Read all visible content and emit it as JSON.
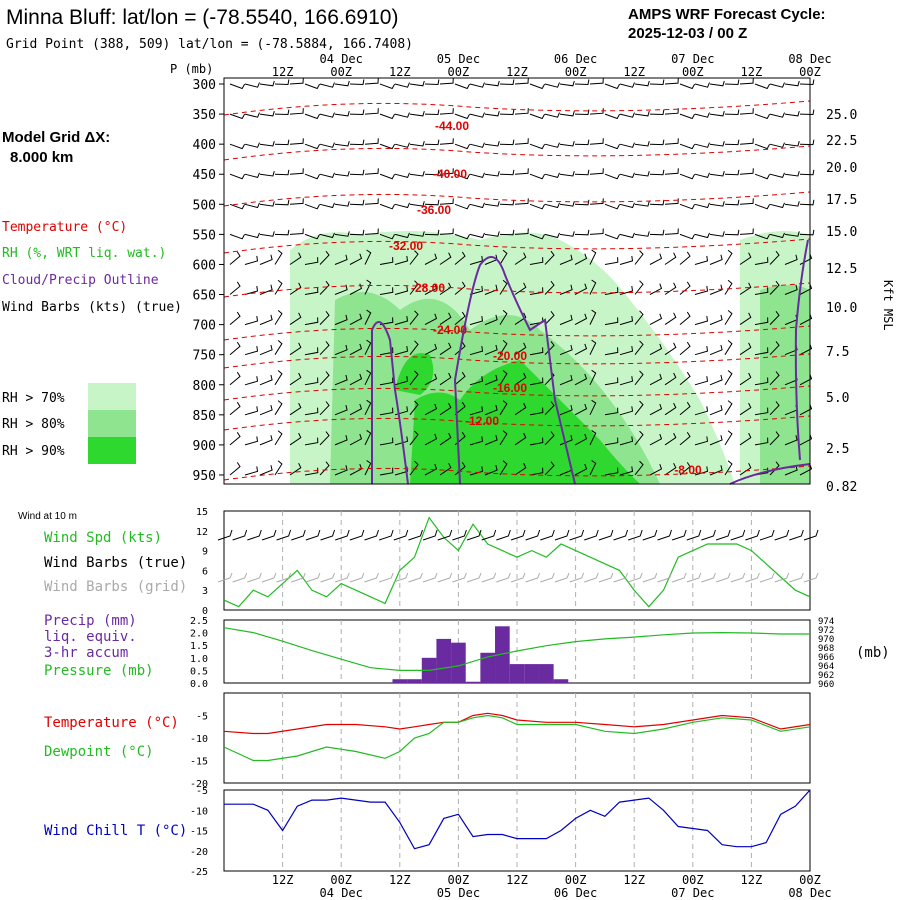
{
  "header": {
    "station_title": "Minna Bluff:  lat/lon = (-78.5540, 166.6910)",
    "grid_point": "Grid Point (388, 509) lat/lon = (-78.5884, 166.7408)",
    "cycle_title": "AMPS WRF Forecast Cycle:",
    "cycle_time": "2025-12-03 / 00  Z"
  },
  "model_grid": {
    "label": "Model Grid ΔX:",
    "value": "8.000 km"
  },
  "colors": {
    "temperature": "#e00000",
    "rh": "#22bb22",
    "cloud": "#6a2aa0",
    "wind": "#000000",
    "wind_grid": "#aaaaaa",
    "precip": "#6a2aa0",
    "pressure": "#22bb22",
    "dewpoint": "#22bb22",
    "windchill": "#0000c0",
    "rh70": "#c8f5c8",
    "rh80": "#8fe48f",
    "rh90": "#2fd82f"
  },
  "time_axis": {
    "hour_labels": [
      "12Z",
      "00Z",
      "12Z",
      "00Z",
      "12Z",
      "00Z",
      "12Z",
      "00Z",
      "12Z",
      "00Z"
    ],
    "date_labels": [
      "04 Dec",
      "05 Dec",
      "06 Dec",
      "07 Dec",
      "08 Dec"
    ],
    "start_hour": 0,
    "end_hour": 120
  },
  "cross_section": {
    "p_axis_title": "P (mb)",
    "pressure_ticks": [
      "300",
      "350",
      "400",
      "450",
      "500",
      "550",
      "600",
      "650",
      "700",
      "750",
      "800",
      "850",
      "900",
      "950"
    ],
    "height_axis_title": "Kft MSL",
    "height_ticks": [
      "25.0",
      "22.5",
      "20.0",
      "17.5",
      "15.0",
      "12.5",
      "10.0",
      "7.5",
      "5.0",
      "2.5",
      "0.82"
    ],
    "legend": {
      "temperature": "Temperature (°C)",
      "rh": "RH (%, WRT liq. wat.)",
      "cloud": "Cloud/Precip Outline",
      "wind": "Wind Barbs (kts) (true)",
      "rh70": "RH > 70%",
      "rh80": "RH > 80%",
      "rh90": "RH > 90%"
    },
    "isotherm_labels": [
      "-44.00",
      "-40.00",
      "-36.00",
      "-32.00",
      "-28.00",
      "-24.00",
      "-20.00",
      "-16.00",
      "-12.00",
      "-8.00"
    ]
  },
  "chart_data": [
    {
      "type": "line",
      "title": "Wind at 10 m",
      "ylabel": "Wind Spd (kts)",
      "legend": [
        "Wind Spd (kts)",
        "Wind Barbs (true)",
        "Wind Barbs (grid)"
      ],
      "x_hours": [
        0,
        3,
        6,
        9,
        12,
        15,
        18,
        21,
        24,
        27,
        30,
        33,
        36,
        39,
        42,
        45,
        48,
        51,
        54,
        57,
        60,
        63,
        66,
        69,
        72,
        75,
        78,
        81,
        84,
        87,
        90,
        93,
        96,
        99,
        102,
        105,
        108,
        111,
        114,
        117,
        120
      ],
      "series": [
        {
          "name": "Wind Spd (kts)",
          "values": [
            1.5,
            0.5,
            3,
            2,
            4,
            6,
            3,
            2,
            4,
            3,
            2,
            1,
            6,
            8,
            14,
            11,
            9,
            13,
            10,
            9,
            8,
            9,
            8,
            10,
            9,
            8,
            7,
            6,
            3,
            0.5,
            3,
            8,
            9,
            10,
            10,
            10,
            9,
            7,
            5,
            3,
            2
          ]
        }
      ],
      "ylim": [
        0,
        15
      ],
      "yticks": [
        "15",
        "12",
        "9",
        "6",
        "3",
        "0"
      ]
    },
    {
      "type": "bar",
      "title": "Precip (mm) liq. equiv. 3-hr accum",
      "legend": [
        "Precip (mm)",
        "liq. equiv.",
        "3-hr accum",
        "Pressure (mb)"
      ],
      "x_hours": [
        36,
        39,
        42,
        45,
        48,
        51,
        54,
        57,
        60,
        63,
        66,
        69
      ],
      "values": [
        0.15,
        0.15,
        1.0,
        1.75,
        1.6,
        0.05,
        1.2,
        2.25,
        0.75,
        0.75,
        0.75,
        0.15
      ],
      "ylim": [
        0,
        2.5
      ],
      "yticks": [
        "2.5",
        "2.0",
        "1.5",
        "1.0",
        "0.5",
        "0.0"
      ]
    },
    {
      "type": "line",
      "title": "Pressure (mb)",
      "x_hours": [
        0,
        6,
        12,
        18,
        24,
        30,
        36,
        42,
        48,
        54,
        60,
        66,
        72,
        78,
        84,
        90,
        96,
        102,
        108,
        114,
        120
      ],
      "series": [
        {
          "name": "Pressure (mb)",
          "values": [
            972.3,
            971.2,
            969.3,
            967.2,
            965.3,
            963.4,
            962.8,
            962.8,
            963.8,
            965.8,
            967.1,
            968.3,
            969.2,
            969.8,
            970.2,
            970.7,
            971.1,
            971.2,
            971.1,
            970.9,
            970.9
          ]
        }
      ],
      "ylim": [
        960,
        974
      ],
      "yticks": [
        "974",
        "972",
        "970",
        "968",
        "966",
        "964",
        "962",
        "960"
      ],
      "yunit": "(mb)"
    },
    {
      "type": "line",
      "title": "Temperature / Dewpoint",
      "x_hours": [
        0,
        6,
        9,
        15,
        21,
        27,
        33,
        36,
        39,
        42,
        45,
        48,
        51,
        54,
        57,
        60,
        66,
        72,
        78,
        84,
        90,
        96,
        102,
        108,
        114,
        120
      ],
      "series": [
        {
          "name": "Temperature (°C)",
          "values": [
            -8.5,
            -9,
            -9,
            -8,
            -7,
            -7,
            -7.5,
            -8,
            -7.5,
            -7,
            -6.5,
            -6.5,
            -5,
            -4.5,
            -5,
            -6,
            -6.5,
            -6.5,
            -7,
            -7.5,
            -7,
            -6,
            -5,
            -5.5,
            -8,
            -7
          ]
        },
        {
          "name": "Dewpoint (°C)",
          "values": [
            -12,
            -15,
            -15,
            -14,
            -12,
            -13,
            -14.5,
            -13,
            -10,
            -9,
            -6.5,
            -6.5,
            -5.5,
            -5,
            -5.5,
            -7,
            -7,
            -7,
            -8.5,
            -9,
            -8,
            -6.5,
            -5.5,
            -6,
            -8.5,
            -7.5
          ]
        }
      ],
      "ylim": [
        -20,
        0
      ],
      "yticks": [
        "-5",
        "-10",
        "-15",
        "-20"
      ]
    },
    {
      "type": "line",
      "title": "Wind Chill T (°C)",
      "x_hours": [
        0,
        6,
        9,
        12,
        15,
        18,
        21,
        24,
        27,
        30,
        33,
        36,
        39,
        42,
        45,
        48,
        51,
        54,
        57,
        60,
        66,
        69,
        72,
        75,
        78,
        81,
        84,
        87,
        90,
        93,
        96,
        99,
        102,
        105,
        108,
        111,
        114,
        117,
        120
      ],
      "series": [
        {
          "name": "Wind Chill T (°C)",
          "values": [
            -8.5,
            -8.5,
            -10,
            -15,
            -9,
            -7.5,
            -7.5,
            -7,
            -7.5,
            -8,
            -8,
            -13,
            -19.5,
            -18.5,
            -12,
            -11,
            -16.5,
            -16,
            -16,
            -17,
            -17,
            -15,
            -12,
            -10,
            -11.5,
            -8,
            -7.5,
            -7,
            -10,
            -14,
            -14.5,
            -15,
            -18.5,
            -19,
            -19,
            -18,
            -11,
            -9,
            -5
          ]
        }
      ],
      "ylim": [
        -25,
        -5
      ],
      "yticks": [
        "-5",
        "-10",
        "-15",
        "-20",
        "-25"
      ]
    }
  ],
  "panels": {
    "wind": {
      "title": "Wind at 10 m",
      "spd_label": "Wind Spd (kts)",
      "barb_label": "Wind Barbs (true)",
      "grid_label": "Wind Barbs (grid)"
    },
    "precip": {
      "l1": "Precip (mm)",
      "l2": "liq. equiv.",
      "l3": "3-hr accum",
      "l4": "Pressure (mb)",
      "unit": "(mb)"
    },
    "temp": {
      "t": "Temperature (°C)",
      "d": "Dewpoint (°C)"
    },
    "chill": {
      "label": "Wind Chill T (°C)"
    }
  }
}
